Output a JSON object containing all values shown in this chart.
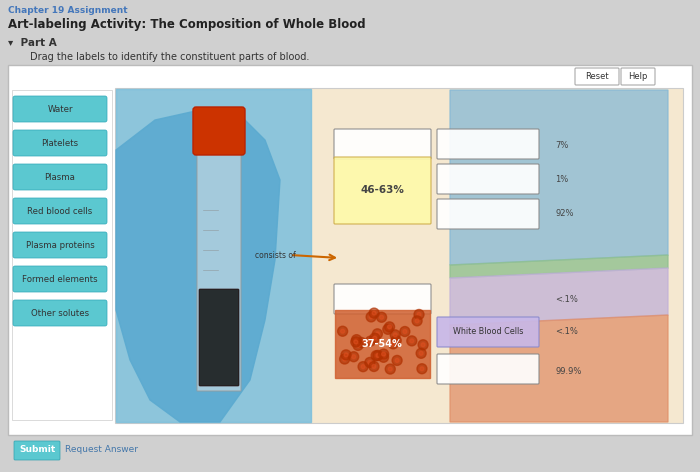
{
  "title": "Art-labeling Activity: The Composition of Whole Blood",
  "subtitle": "Chapter 19 Assignment",
  "part_label": "Part A",
  "instruction": "Drag the labels to identify the constituent parts of blood.",
  "bg_color": "#d0d0d0",
  "panel_bg": "#ffffff",
  "inner_bg": "#f5e8d0",
  "labels": [
    "Water",
    "Platelets",
    "Plasma",
    "Red blood cells",
    "Plasma proteins",
    "Formed elements",
    "Other solutes"
  ],
  "label_color": "#5bc8d0",
  "percentages_right": [
    "7%",
    "1%",
    "92%",
    "<.1%",
    "<.1%",
    "99.9%"
  ],
  "percent_46_63": "46-63%",
  "percent_37_54": "37-54%",
  "white_blood_cells": "White Blood Cells",
  "reset_text": "Reset",
  "help_text": "Help",
  "submit_text": "Submit",
  "request_answer_text": "Request Answer",
  "arrow_text": "consists of"
}
